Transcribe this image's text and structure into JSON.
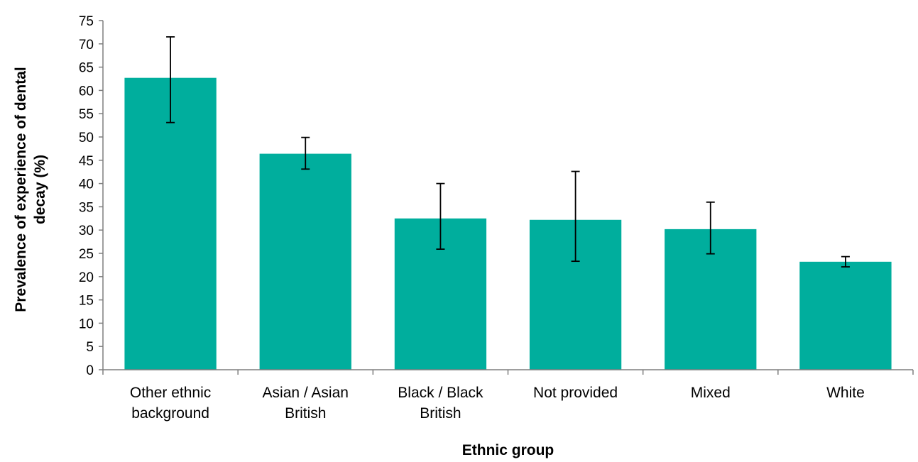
{
  "chart_data": {
    "type": "bar",
    "title": "",
    "xlabel": "Ethnic group",
    "ylabel": "Prevalence of experience of dental decay (%)",
    "ylim": [
      0,
      75
    ],
    "ytick_step": 5,
    "grid": false,
    "legend": "none",
    "bar_color": "#00ae9d",
    "categories": [
      "Other ethnic background",
      "Asian / Asian British",
      "Black / Black British",
      "Not provided",
      "Mixed",
      "White"
    ],
    "category_label_lines": [
      [
        "Other ethnic",
        "background"
      ],
      [
        "Asian / Asian",
        "British"
      ],
      [
        "Black / Black",
        "British"
      ],
      [
        "Not provided"
      ],
      [
        "Mixed"
      ],
      [
        "White"
      ]
    ],
    "series": [
      {
        "values": [
          62.7,
          46.4,
          32.5,
          32.2,
          30.2,
          23.2
        ],
        "error_low": [
          53.1,
          43.1,
          25.9,
          23.3,
          24.9,
          22.1
        ],
        "error_high": [
          71.5,
          49.9,
          40.0,
          42.6,
          36.0,
          24.3
        ]
      }
    ]
  }
}
